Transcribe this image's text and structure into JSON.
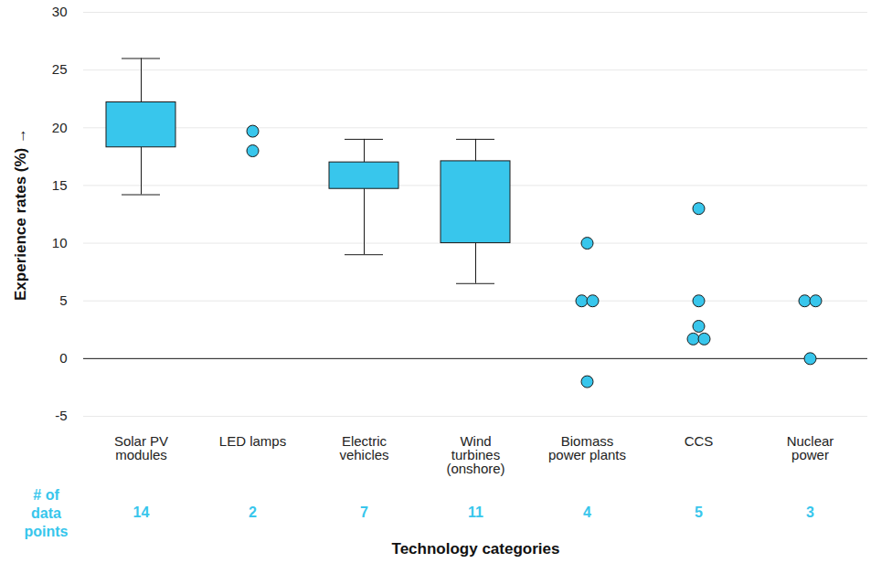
{
  "chart_data": {
    "type": "box",
    "categories": [
      "Solar PV\nmodules",
      "LED lamps",
      "Electric\nvehicles",
      "Wind\nturbines\n(onshore)",
      "Biomass\npower plants",
      "CCS",
      "Nuclear\npower"
    ],
    "box_stats": [
      {
        "whisker_low": 14.2,
        "q1": 18.3,
        "q3": 22.2,
        "whisker_high": 26
      },
      null,
      {
        "whisker_low": 9,
        "q1": 14.7,
        "q3": 17,
        "whisker_high": 19
      },
      {
        "whisker_low": 6.5,
        "q1": 10,
        "q3": 17.1,
        "whisker_high": 19
      },
      null,
      null,
      null
    ],
    "points": [
      null,
      [
        19.7,
        18
      ],
      null,
      null,
      [
        10,
        5,
        5,
        -2
      ],
      [
        13,
        5,
        2.8,
        1.7,
        1.7
      ],
      [
        5,
        5,
        0
      ]
    ],
    "counts": [
      14,
      2,
      7,
      11,
      4,
      5,
      3
    ],
    "counts_label": "# of\ndata\npoints",
    "xlabel": "Technology categories",
    "ylabel": "Experience rates (%)",
    "ylim": [
      -5,
      30
    ],
    "yticks": [
      -5,
      0,
      5,
      10,
      15,
      20,
      25,
      30
    ],
    "grid": true,
    "color": "#38c6ec"
  }
}
